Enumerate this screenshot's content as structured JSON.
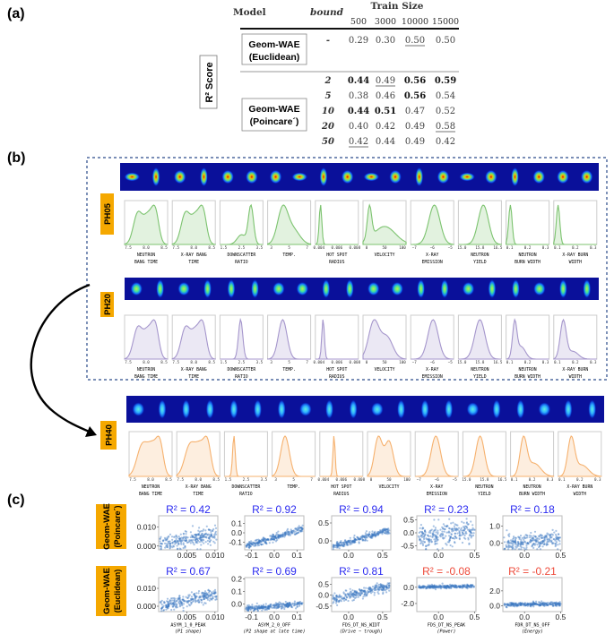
{
  "panel_labels": {
    "a": "(a)",
    "b": "(b)",
    "c": "(c)"
  },
  "table": {
    "side_label": "R² Score",
    "header": {
      "model": "Model",
      "bound": "bound",
      "train_size": "Train Size",
      "sizes": [
        "500",
        "3000",
        "10000",
        "15000"
      ]
    },
    "groups": [
      {
        "model_line1": "Geom-WAE",
        "model_line2": "(Euclidean)",
        "rows": [
          {
            "bound": "-",
            "cells": [
              {
                "v": "0.29"
              },
              {
                "v": "0.30"
              },
              {
                "v": "0.50",
                "underline": true
              },
              {
                "v": "0.50"
              }
            ]
          }
        ]
      },
      {
        "model_line1": "Geom-WAE",
        "model_line2": "(Poincare´)",
        "rows": [
          {
            "bound": "2",
            "cells": [
              {
                "v": "0.44",
                "bold": true
              },
              {
                "v": "0.49",
                "underline": true
              },
              {
                "v": "0.56",
                "bold": true
              },
              {
                "v": "0.59",
                "bold": true
              }
            ]
          },
          {
            "bound": "5",
            "cells": [
              {
                "v": "0.38"
              },
              {
                "v": "0.46"
              },
              {
                "v": "0.56",
                "bold": true
              },
              {
                "v": "0.54"
              }
            ]
          },
          {
            "bound": "10",
            "cells": [
              {
                "v": "0.44",
                "bold": true
              },
              {
                "v": "0.51",
                "bold": true
              },
              {
                "v": "0.47"
              },
              {
                "v": "0.52"
              }
            ]
          },
          {
            "bound": "20",
            "cells": [
              {
                "v": "0.40"
              },
              {
                "v": "0.42"
              },
              {
                "v": "0.49"
              },
              {
                "v": "0.58",
                "underline": true
              }
            ]
          },
          {
            "bound": "50",
            "cells": [
              {
                "v": "0.42",
                "underline": true
              },
              {
                "v": "0.44"
              },
              {
                "v": "0.49"
              },
              {
                "v": "0.42"
              }
            ]
          }
        ]
      }
    ]
  },
  "colors": {
    "label_bg": "#f5a800",
    "ph05": "#7cc36f",
    "ph20": "#a596cc",
    "ph40": "#f6b16e",
    "r2_positive": "#2b2bf0",
    "r2_negative": "#ee4a3a",
    "scatter": "#3b78c0",
    "dashed_border": "#2a4a8a"
  },
  "distributions": {
    "variables": [
      {
        "name1": "NEUTRON",
        "name2": "BANG TIME",
        "ticks": [
          "7.5",
          "8.0",
          "8.5"
        ]
      },
      {
        "name1": "X-RAY BANG",
        "name2": "TIME",
        "ticks": [
          "7.5",
          "8.0",
          "8.5"
        ]
      },
      {
        "name1": "DOWNSCATTER",
        "name2": "RATIO",
        "ticks": [
          "1.5",
          "2.5",
          "3.5"
        ]
      },
      {
        "name1": "TEMP.",
        "name2": "",
        "ticks": [
          "3",
          "5",
          "7"
        ]
      },
      {
        "name1": "HOT SPOT",
        "name2": "RADIUS",
        "ticks": [
          "0.004",
          "0.006",
          "0.008"
        ]
      },
      {
        "name1": "VELOCITY",
        "name2": "",
        "ticks": [
          "0",
          "50",
          "100"
        ]
      },
      {
        "name1": "X-RAY",
        "name2": "EMISSION",
        "ticks": [
          "−7",
          "−6",
          "−5"
        ]
      },
      {
        "name1": "NEUTRON",
        "name2": "YIELD",
        "ticks": [
          "15.0",
          "15.8",
          "16.5"
        ]
      },
      {
        "name1": "NEUTRON",
        "name2": "BURN WIDTH",
        "ticks": [
          "0.1",
          "0.2",
          "0.3"
        ]
      },
      {
        "name1": "X-RAY BURN",
        "name2": "WIDTH",
        "ticks": [
          "0.1",
          "0.2",
          "0.3"
        ]
      }
    ],
    "groups": [
      {
        "label": "PH05"
      },
      {
        "label": "PH20"
      },
      {
        "label": "PH40"
      }
    ]
  },
  "chart_data": {
    "type": "scatter",
    "row_labels": [
      {
        "line1": "Geom-WAE",
        "line2": "(Poincare´)"
      },
      {
        "line1": "Geom-WAE",
        "line2": "(Euclidean)"
      }
    ],
    "columns": [
      {
        "xlabel1": "ASYM_1_0_PEAK",
        "xlabel2": "(P1 shape)",
        "xlim": [
          0,
          0.0105
        ],
        "xticks": [
          "0.005",
          "0.010"
        ]
      },
      {
        "xlabel1": "ASYM_2_0_OFF",
        "xlabel2": "(P2 shape at late time)",
        "xlim": [
          -0.13,
          0.13
        ],
        "xticks": [
          "-0.1",
          "0.0",
          "0.1"
        ]
      },
      {
        "xlabel1": "FDS_DT_NS_WIDT",
        "xlabel2": "(Drive − trough)",
        "xlim": [
          -0.25,
          0.62
        ],
        "xticks": [
          "0.0",
          "0.5"
        ]
      },
      {
        "xlabel1": "FDS_DT_NS_PEAK",
        "xlabel2": "(Power)",
        "xlim": [
          -0.3,
          0.52
        ],
        "xticks": [
          "0.0",
          "0.5"
        ]
      },
      {
        "xlabel1": "FDR_DT_NS_OFF",
        "xlabel2": "(Energy)",
        "xlim": [
          -0.3,
          0.52
        ],
        "xticks": [
          "0.0",
          "0.5"
        ]
      }
    ],
    "plots": [
      [
        {
          "title": "R² = 0.42",
          "r2": 0.42,
          "ylim": [
            -0.002,
            0.016
          ],
          "yticks": [
            "0.000",
            "0.010"
          ]
        },
        {
          "title": "R² = 0.92",
          "r2": 0.92,
          "ylim": [
            -0.18,
            0.18
          ],
          "yticks": [
            "-0.1",
            "0.0",
            "0.1"
          ]
        },
        {
          "title": "R² = 0.94",
          "r2": 0.94,
          "ylim": [
            -0.25,
            0.7
          ],
          "yticks": [
            "0.0",
            "0.5"
          ]
        },
        {
          "title": "R² = 0.23",
          "r2": 0.23,
          "ylim": [
            -0.65,
            0.65
          ],
          "yticks": [
            "-0.5",
            "0.0",
            "0.5"
          ]
        },
        {
          "title": "R² = 0.18",
          "r2": 0.18,
          "ylim": [
            -0.4,
            1.6
          ],
          "yticks": [
            "0.0",
            "1.0"
          ]
        }
      ],
      [
        {
          "title": "R² = 0.67",
          "r2": 0.67,
          "ylim": [
            -0.003,
            0.016
          ],
          "yticks": [
            "0.000",
            "0.010"
          ]
        },
        {
          "title": "R² = 0.69",
          "r2": 0.69,
          "ylim": [
            -0.06,
            0.21
          ],
          "yticks": [
            "0.0",
            "0.1",
            "0.2"
          ]
        },
        {
          "title": "R² = 0.81",
          "r2": 0.81,
          "ylim": [
            -0.75,
            0.8
          ],
          "yticks": [
            "-0.5",
            "0.0",
            "0.5"
          ]
        },
        {
          "title": "R² = -0.08",
          "r2": -0.08,
          "ylim": [
            -3.0,
            1.2
          ],
          "yticks": [
            "-2.0",
            "0.0"
          ]
        },
        {
          "title": "R² = -0.21",
          "r2": -0.21,
          "ylim": [
            -0.8,
            3.8
          ],
          "yticks": [
            "0.0",
            "2.0"
          ]
        }
      ]
    ]
  }
}
